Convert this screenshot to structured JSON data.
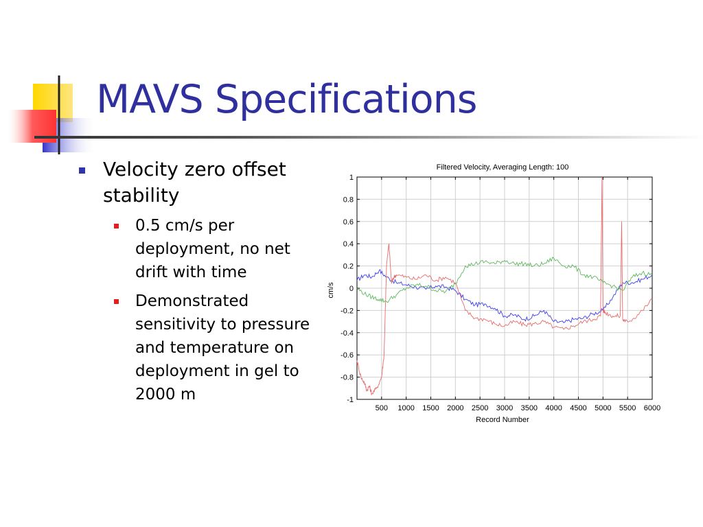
{
  "slide": {
    "title": "MAVS Specifications",
    "bullets": [
      {
        "text": "Velocity zero offset stability",
        "sub": [
          "0.5 cm/s per deployment, no net drift with time",
          "Demonstrated sensitivity to pressure and temperature on deployment in gel to 2000 m"
        ]
      }
    ]
  },
  "colors": {
    "title": "#2f2f9e",
    "bullet1": "#3333aa",
    "bullet2": "#e81c1c"
  },
  "chart_data": {
    "type": "line",
    "title": "Filtered Velocity, Averaging Length: 100",
    "xlabel": "Record Number",
    "ylabel": "cm/s",
    "xlim": [
      0,
      6000
    ],
    "ylim": [
      -1,
      1
    ],
    "xticks": [
      500,
      1000,
      1500,
      2000,
      2500,
      3000,
      3500,
      4000,
      4500,
      5000,
      5500,
      6000
    ],
    "yticks": [
      1,
      0.8,
      0.6,
      0.4,
      0.2,
      0,
      -0.2,
      -0.4,
      -0.6,
      -0.8,
      -1
    ],
    "grid": true,
    "series": [
      {
        "color": "#3b3bee",
        "x": [
          0,
          150,
          300,
          450,
          600,
          800,
          1000,
          1200,
          1400,
          1600,
          1800,
          2000,
          2200,
          2400,
          2600,
          2800,
          3000,
          3200,
          3400,
          3600,
          3800,
          4000,
          4200,
          4400,
          4600,
          4800,
          5000,
          5200,
          5400,
          5600,
          5800,
          6000
        ],
        "y": [
          0.07,
          0.12,
          0.1,
          0.16,
          0.1,
          0.05,
          0.03,
          0.01,
          -0.01,
          0.02,
          0.01,
          -0.02,
          -0.1,
          -0.15,
          -0.14,
          -0.18,
          -0.25,
          -0.24,
          -0.28,
          -0.25,
          -0.2,
          -0.3,
          -0.31,
          -0.28,
          -0.27,
          -0.23,
          -0.2,
          -0.08,
          0.05,
          0.05,
          0.08,
          0.12
        ]
      },
      {
        "color": "#e86a6a",
        "x": [
          0,
          80,
          150,
          200,
          250,
          300,
          400,
          500,
          550,
          600,
          650,
          700,
          750,
          800,
          1000,
          1200,
          1400,
          1600,
          1800,
          2000,
          2200,
          2400,
          2600,
          2800,
          3000,
          3200,
          3400,
          3600,
          3800,
          4000,
          4200,
          4400,
          4600,
          4800,
          4950,
          4980,
          5000,
          5050,
          5200,
          5350,
          5380,
          5400,
          5450,
          5600,
          5800,
          6000
        ],
        "y": [
          -0.65,
          -0.8,
          -0.85,
          -0.92,
          -0.88,
          -0.95,
          -0.9,
          -0.8,
          -0.6,
          0.2,
          0.4,
          0.05,
          0.1,
          0.12,
          0.1,
          0.08,
          0.12,
          0.07,
          0.1,
          0.05,
          -0.2,
          -0.27,
          -0.28,
          -0.32,
          -0.34,
          -0.3,
          -0.33,
          -0.32,
          -0.3,
          -0.35,
          -0.37,
          -0.34,
          -0.3,
          -0.28,
          -0.25,
          1.0,
          -0.2,
          -0.22,
          -0.25,
          -0.25,
          0.6,
          -0.28,
          -0.3,
          -0.28,
          -0.2,
          -0.1
        ]
      },
      {
        "color": "#5cb85c",
        "x": [
          0,
          150,
          300,
          450,
          600,
          800,
          1000,
          1200,
          1400,
          1600,
          1800,
          2000,
          2200,
          2400,
          2600,
          2800,
          3000,
          3200,
          3400,
          3600,
          3800,
          4000,
          4200,
          4400,
          4600,
          4800,
          5000,
          5200,
          5400,
          5600,
          5800,
          6000
        ],
        "y": [
          0.0,
          -0.05,
          -0.08,
          -0.1,
          -0.12,
          -0.06,
          0.0,
          0.03,
          0.02,
          -0.02,
          -0.03,
          0.04,
          0.2,
          0.22,
          0.24,
          0.22,
          0.25,
          0.22,
          0.22,
          0.2,
          0.22,
          0.27,
          0.2,
          0.2,
          0.12,
          0.1,
          0.05,
          0.02,
          -0.02,
          0.1,
          0.14,
          0.12
        ]
      }
    ]
  }
}
